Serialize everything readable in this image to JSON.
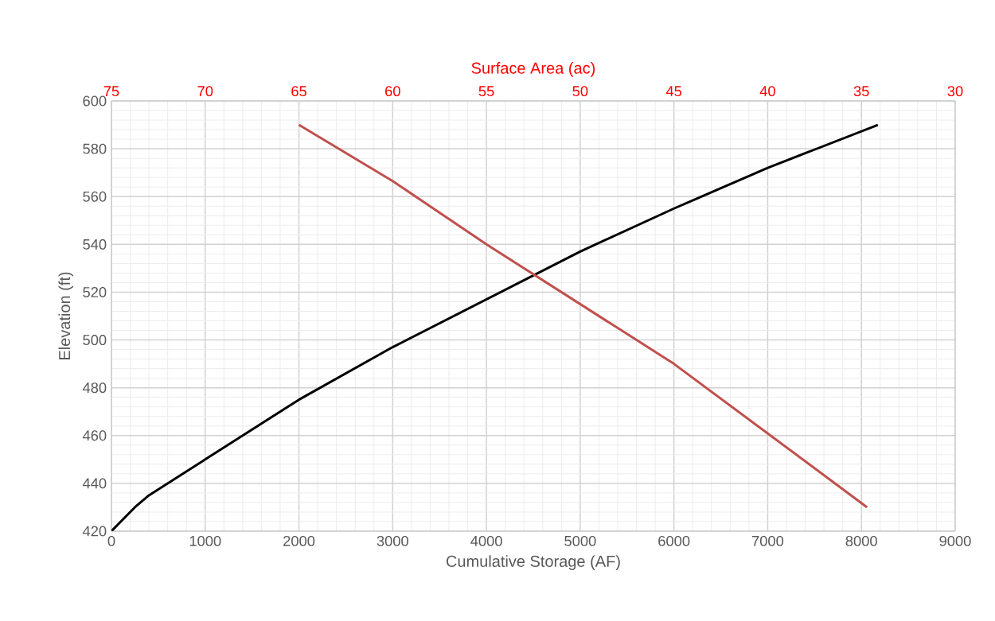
{
  "chart_data": {
    "type": "line",
    "xlabel": "Cumulative Storage (AF)",
    "ylabel": "Elevation (ft)",
    "x2label": "Surface Area (ac)",
    "xlim": [
      0,
      9000
    ],
    "xticks": [
      0,
      1000,
      2000,
      3000,
      4000,
      5000,
      6000,
      7000,
      8000,
      9000
    ],
    "ylim": [
      420,
      600
    ],
    "yticks": [
      420,
      440,
      460,
      480,
      500,
      520,
      540,
      560,
      580,
      600
    ],
    "x2lim": [
      75,
      30
    ],
    "x2ticks": [
      75,
      70,
      65,
      60,
      55,
      50,
      45,
      40,
      35,
      30
    ],
    "grid": true,
    "marker": "none",
    "line_style": "solid",
    "series": [
      {
        "color": "#000000",
        "x": [
          0,
          250,
          400,
          1000,
          2000,
          3000,
          4000,
          5000,
          6000,
          7000,
          8175
        ],
        "values": [
          420,
          430,
          435,
          450,
          475,
          497,
          517,
          537,
          555,
          572,
          590
        ]
      },
      {
        "color": "#c0504d",
        "axis": "x2",
        "x": [
          65,
          60,
          55,
          45,
          34.7
        ],
        "values": [
          590,
          566.5,
          540,
          490,
          430
        ]
      }
    ]
  }
}
